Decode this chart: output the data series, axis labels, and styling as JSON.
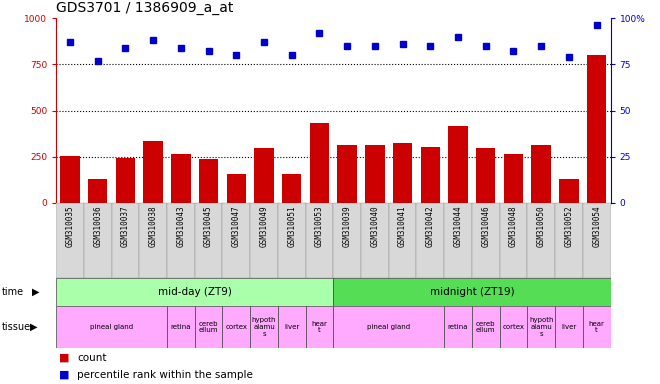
{
  "title": "GDS3701 / 1386909_a_at",
  "samples": [
    "GSM310035",
    "GSM310036",
    "GSM310037",
    "GSM310038",
    "GSM310043",
    "GSM310045",
    "GSM310047",
    "GSM310049",
    "GSM310051",
    "GSM310053",
    "GSM310039",
    "GSM310040",
    "GSM310041",
    "GSM310042",
    "GSM310044",
    "GSM310046",
    "GSM310048",
    "GSM310050",
    "GSM310052",
    "GSM310054"
  ],
  "counts": [
    255,
    130,
    245,
    335,
    265,
    240,
    155,
    300,
    155,
    435,
    315,
    315,
    325,
    305,
    415,
    295,
    265,
    315,
    130,
    800
  ],
  "percentiles": [
    87,
    77,
    84,
    88,
    84,
    82,
    80,
    87,
    80,
    92,
    85,
    85,
    86,
    85,
    90,
    85,
    82,
    85,
    79,
    96
  ],
  "bar_color": "#cc0000",
  "dot_color": "#0000cc",
  "ylim_left": [
    0,
    1000
  ],
  "ylim_right": [
    0,
    100
  ],
  "yticks_left": [
    0,
    250,
    500,
    750,
    1000
  ],
  "yticks_right": [
    0,
    25,
    50,
    75,
    100
  ],
  "bg_color": "#ffffff",
  "tick_label_color_left": "#cc0000",
  "tick_label_color_right": "#0000cc",
  "title_fontsize": 10,
  "tick_fontsize": 6.5,
  "sample_bg_color": "#d8d8d8",
  "time_color_1": "#aaffaa",
  "time_color_2": "#55dd55",
  "tissue_color": "#ffaaff",
  "tissue_info": [
    {
      "label": "pineal gland",
      "start": 0,
      "end": 4
    },
    {
      "label": "retina",
      "start": 4,
      "end": 5
    },
    {
      "label": "cereb\nellum",
      "start": 5,
      "end": 6
    },
    {
      "label": "cortex",
      "start": 6,
      "end": 7
    },
    {
      "label": "hypoth\nalamu\ns",
      "start": 7,
      "end": 8
    },
    {
      "label": "liver",
      "start": 8,
      "end": 9
    },
    {
      "label": "hear\nt",
      "start": 9,
      "end": 10
    },
    {
      "label": "pineal gland",
      "start": 10,
      "end": 14
    },
    {
      "label": "retina",
      "start": 14,
      "end": 15
    },
    {
      "label": "cereb\nellum",
      "start": 15,
      "end": 16
    },
    {
      "label": "cortex",
      "start": 16,
      "end": 17
    },
    {
      "label": "hypoth\nalamu\ns",
      "start": 17,
      "end": 18
    },
    {
      "label": "liver",
      "start": 18,
      "end": 19
    },
    {
      "label": "hear\nt",
      "start": 19,
      "end": 20
    }
  ]
}
